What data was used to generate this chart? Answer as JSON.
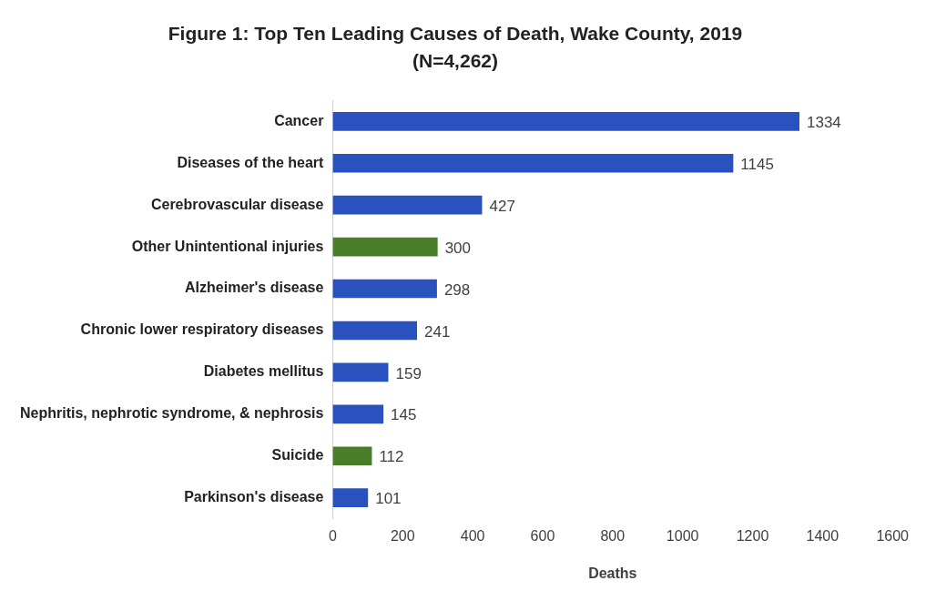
{
  "chart_data": {
    "type": "bar",
    "orientation": "horizontal",
    "title": "Figure 1: Top Ten Leading Causes of Death, Wake County, 2019",
    "subtitle": "(N=4,262)",
    "xlabel": "Deaths",
    "categories": [
      "Cancer",
      "Diseases of the heart",
      "Cerebrovascular disease",
      "Other Unintentional injuries",
      "Alzheimer's disease",
      "Chronic lower respiratory diseases",
      "Diabetes mellitus",
      "Nephritis, nephrotic syndrome, & nephrosis",
      "Suicide",
      "Parkinson's disease"
    ],
    "values": [
      1334,
      1145,
      427,
      300,
      298,
      241,
      159,
      145,
      112,
      101
    ],
    "colors": [
      "#2a52be",
      "#2a52be",
      "#2a52be",
      "#4a7d2a",
      "#2a52be",
      "#2a52be",
      "#2a52be",
      "#2a52be",
      "#4a7d2a",
      "#2a52be"
    ],
    "xlim": [
      0,
      1600
    ],
    "xticks": [
      0,
      200,
      400,
      600,
      800,
      1000,
      1200,
      1400,
      1600
    ],
    "grid": false,
    "legend": false,
    "data_labels": true
  }
}
